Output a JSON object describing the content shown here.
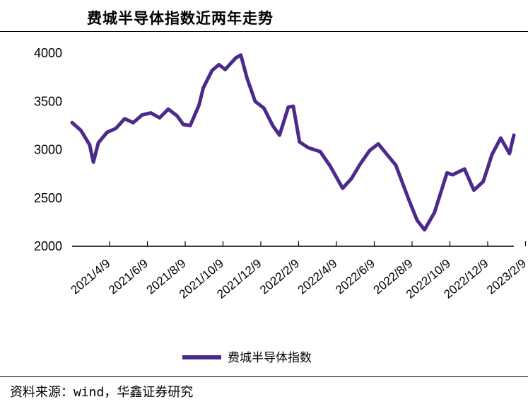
{
  "chart_data": {
    "type": "line",
    "title": "费城半导体指数近两年走势",
    "xlabel": "",
    "ylabel": "",
    "ylim": [
      2000,
      4000
    ],
    "yticks": [
      2000,
      2500,
      3000,
      3500,
      4000
    ],
    "xticks": [
      "2021/4/9",
      "2021/6/9",
      "2021/8/9",
      "2021/10/9",
      "2021/12/9",
      "2022/2/9",
      "2022/4/9",
      "2022/6/9",
      "2022/8/9",
      "2022/10/9",
      "2022/12/9",
      "2023/2/9"
    ],
    "grid": false,
    "legend": "bottom",
    "color": "#4B2A8C",
    "series": [
      {
        "name": "费城半导体指数",
        "x": [
          "2021-04-09",
          "2021-04-23",
          "2021-05-07",
          "2021-05-13",
          "2021-05-21",
          "2021-06-04",
          "2021-06-18",
          "2021-07-02",
          "2021-07-16",
          "2021-07-30",
          "2021-08-13",
          "2021-08-27",
          "2021-09-10",
          "2021-09-24",
          "2021-10-04",
          "2021-10-15",
          "2021-10-29",
          "2021-11-05",
          "2021-11-19",
          "2021-11-30",
          "2021-12-10",
          "2021-12-27",
          "2022-01-04",
          "2022-01-14",
          "2022-01-27",
          "2022-02-10",
          "2022-02-24",
          "2022-03-07",
          "2022-03-21",
          "2022-03-29",
          "2022-04-08",
          "2022-04-22",
          "2022-05-11",
          "2022-05-27",
          "2022-06-16",
          "2022-06-30",
          "2022-07-14",
          "2022-07-29",
          "2022-08-12",
          "2022-08-26",
          "2022-09-09",
          "2022-09-30",
          "2022-10-13",
          "2022-10-25",
          "2022-11-10",
          "2022-11-30",
          "2022-12-09",
          "2022-12-28",
          "2023-01-12",
          "2023-01-27",
          "2023-02-10",
          "2023-02-24",
          "2023-03-10",
          "2023-03-17"
        ],
        "values": [
          3280,
          3200,
          3050,
          2870,
          3070,
          3180,
          3220,
          3320,
          3280,
          3360,
          3380,
          3330,
          3420,
          3350,
          3260,
          3250,
          3460,
          3640,
          3820,
          3880,
          3830,
          3950,
          3980,
          3740,
          3500,
          3430,
          3250,
          3150,
          3440,
          3450,
          3080,
          3020,
          2980,
          2830,
          2600,
          2700,
          2850,
          2990,
          3060,
          2950,
          2840,
          2480,
          2270,
          2170,
          2350,
          2760,
          2740,
          2800,
          2580,
          2670,
          2950,
          3120,
          2960,
          3150
        ]
      }
    ]
  },
  "legend_label": "费城半导体指数",
  "source": "资料来源：wind，华鑫证券研究"
}
